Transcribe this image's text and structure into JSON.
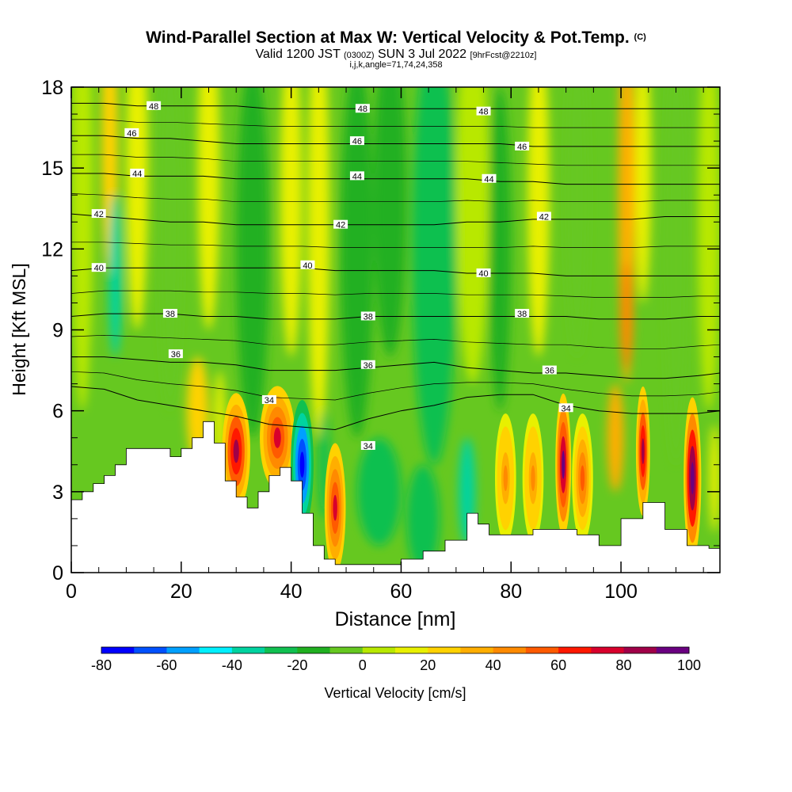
{
  "header": {
    "title": "Wind-Parallel Section at Max W: Vertical Velocity & Pot.Temp.",
    "title_mark": "(C)",
    "valid_label": "Valid 1200 JST",
    "valid_zulu": "(0300Z)",
    "valid_date": "SUN 3 Jul 2022",
    "forecast_info": "[9hrFcst@2210z]",
    "params": "i,j,k,angle=71,74,24,358"
  },
  "chart_data": {
    "type": "heatmap",
    "xlabel": "Distance [nm]",
    "ylabel": "Height [Kft MSL]",
    "xlim": [
      0,
      118
    ],
    "ylim": [
      0,
      18
    ],
    "x_ticks": [
      0,
      20,
      40,
      60,
      80,
      100
    ],
    "y_ticks": [
      0,
      3,
      6,
      9,
      12,
      15,
      18
    ],
    "colorbar": {
      "label": "Vertical Velocity [cm/s]",
      "ticks": [
        -80,
        -60,
        -40,
        -20,
        0,
        20,
        40,
        60,
        80,
        100
      ],
      "levels": [
        -80,
        -70,
        -60,
        -50,
        -40,
        -30,
        -20,
        -10,
        0,
        10,
        20,
        30,
        40,
        50,
        60,
        70,
        80,
        90,
        100
      ],
      "colors": [
        "#0000ff",
        "#0050ff",
        "#00a0ff",
        "#00f0ff",
        "#00d3a0",
        "#10c050",
        "#20b020",
        "#66c820",
        "#b8e800",
        "#e8f000",
        "#ffd200",
        "#ffae00",
        "#ff8a00",
        "#ff5a00",
        "#ff1800",
        "#d8002c",
        "#a00048",
        "#6a0080"
      ]
    },
    "terrain_x": [
      0,
      2,
      4,
      6,
      8,
      10,
      14,
      18,
      20,
      22,
      24,
      26,
      28,
      30,
      32,
      34,
      36,
      38,
      40,
      42,
      44,
      46,
      48,
      52,
      56,
      60,
      64,
      68,
      72,
      74,
      76,
      80,
      84,
      88,
      92,
      96,
      100,
      104,
      108,
      112,
      116,
      118
    ],
    "terrain_height": [
      2.7,
      3.0,
      3.3,
      3.6,
      4.0,
      4.6,
      4.6,
      4.3,
      4.6,
      5.0,
      5.6,
      4.8,
      3.4,
      2.8,
      2.4,
      3.0,
      3.6,
      3.9,
      3.4,
      2.2,
      1.0,
      0.5,
      0.3,
      0.3,
      0.3,
      0.5,
      0.8,
      1.2,
      2.2,
      1.8,
      1.4,
      1.4,
      1.6,
      1.6,
      1.4,
      1.0,
      2.0,
      2.6,
      1.6,
      1.0,
      0.9,
      0.8
    ],
    "theta_contours": [
      {
        "label": "34",
        "y": [
          6.9,
          6.8,
          6.4,
          6.2,
          6.0,
          5.8,
          5.5,
          5.4,
          5.3,
          5.7,
          6.0,
          6.2,
          6.5,
          6.6,
          6.6,
          6.2,
          6.0,
          5.9,
          5.9,
          5.9,
          6.0
        ]
      },
      {
        "label": "36",
        "y": [
          8.0,
          8.0,
          7.9,
          7.8,
          7.8,
          7.7,
          7.5,
          7.5,
          7.5,
          7.6,
          7.7,
          7.8,
          7.6,
          7.5,
          7.4,
          7.4,
          7.3,
          7.2,
          7.2,
          7.3,
          7.4
        ]
      },
      {
        "label": "38",
        "y": [
          9.5,
          9.6,
          9.6,
          9.6,
          9.5,
          9.5,
          9.4,
          9.4,
          9.4,
          9.5,
          9.5,
          9.5,
          9.5,
          9.5,
          9.5,
          9.5,
          9.4,
          9.4,
          9.4,
          9.5,
          9.5
        ]
      },
      {
        "label": "40",
        "y": [
          11.2,
          11.3,
          11.3,
          11.3,
          11.3,
          11.3,
          11.3,
          11.3,
          11.2,
          11.2,
          11.2,
          11.2,
          11.1,
          11.1,
          11.1,
          11.0,
          11.0,
          11.0,
          11.0,
          11.0,
          11.0
        ]
      },
      {
        "label": "42",
        "y": [
          13.3,
          13.2,
          13.1,
          13.0,
          13.0,
          12.9,
          12.9,
          12.9,
          12.9,
          12.9,
          12.9,
          12.9,
          13.0,
          13.0,
          13.1,
          13.1,
          13.1,
          13.1,
          13.2,
          13.2,
          13.2
        ]
      },
      {
        "label": "44",
        "y": [
          14.8,
          14.8,
          14.7,
          14.7,
          14.7,
          14.6,
          14.6,
          14.6,
          14.6,
          14.6,
          14.6,
          14.6,
          14.6,
          14.5,
          14.5,
          14.4,
          14.4,
          14.4,
          14.4,
          14.4,
          14.4
        ]
      },
      {
        "label": "46",
        "y": [
          16.2,
          16.2,
          16.1,
          16.1,
          16.0,
          15.9,
          15.9,
          15.9,
          15.9,
          15.9,
          15.9,
          15.9,
          15.9,
          15.9,
          15.8,
          15.8,
          15.8,
          15.8,
          15.8,
          15.8,
          15.8
        ]
      },
      {
        "label": "48",
        "y": [
          17.4,
          17.4,
          17.3,
          17.3,
          17.3,
          17.3,
          17.2,
          17.2,
          17.2,
          17.2,
          17.2,
          17.2,
          17.2,
          17.2,
          17.2,
          17.2,
          17.2,
          17.2,
          17.2,
          17.2,
          17.2
        ]
      }
    ],
    "contour_x": [
      0,
      6,
      12,
      18,
      24,
      30,
      36,
      42,
      48,
      54,
      60,
      66,
      72,
      78,
      84,
      90,
      96,
      102,
      108,
      114,
      118
    ],
    "contour_labels": [
      {
        "text": "48",
        "x": 15,
        "y": 17.3
      },
      {
        "text": "48",
        "x": 53,
        "y": 17.2
      },
      {
        "text": "48",
        "x": 75,
        "y": 17.1
      },
      {
        "text": "46",
        "x": 11,
        "y": 16.3
      },
      {
        "text": "46",
        "x": 52,
        "y": 16.0
      },
      {
        "text": "46",
        "x": 82,
        "y": 15.8
      },
      {
        "text": "44",
        "x": 12,
        "y": 14.8
      },
      {
        "text": "44",
        "x": 52,
        "y": 14.7
      },
      {
        "text": "44",
        "x": 76,
        "y": 14.6
      },
      {
        "text": "42",
        "x": 5,
        "y": 13.3
      },
      {
        "text": "42",
        "x": 49,
        "y": 12.9
      },
      {
        "text": "42",
        "x": 86,
        "y": 13.2
      },
      {
        "text": "40",
        "x": 5,
        "y": 11.3
      },
      {
        "text": "40",
        "x": 43,
        "y": 11.4
      },
      {
        "text": "40",
        "x": 75,
        "y": 11.1
      },
      {
        "text": "38",
        "x": 18,
        "y": 9.6
      },
      {
        "text": "38",
        "x": 54,
        "y": 9.5
      },
      {
        "text": "38",
        "x": 82,
        "y": 9.6
      },
      {
        "text": "36",
        "x": 19,
        "y": 8.1
      },
      {
        "text": "36",
        "x": 54,
        "y": 7.7
      },
      {
        "text": "36",
        "x": 87,
        "y": 7.5
      },
      {
        "text": "34",
        "x": 36,
        "y": 6.4
      },
      {
        "text": "34",
        "x": 54,
        "y": 4.7
      },
      {
        "text": "34",
        "x": 90,
        "y": 6.1
      }
    ],
    "updraft_cells": [
      {
        "x": 30,
        "y": 4.5,
        "w": 1.6,
        "h": 1.8,
        "v": 80
      },
      {
        "x": 37.5,
        "y": 5.0,
        "w": 2.0,
        "h": 1.6,
        "v": 70
      },
      {
        "x": 42,
        "y": 4.0,
        "w": 1.3,
        "h": 2.0,
        "v": -80
      },
      {
        "x": 48,
        "y": 2.4,
        "w": 1.2,
        "h": 2.0,
        "v": 70
      },
      {
        "x": 79,
        "y": 3.5,
        "w": 1.2,
        "h": 2.0,
        "v": 40
      },
      {
        "x": 84,
        "y": 3.5,
        "w": 1.2,
        "h": 2.0,
        "v": 40
      },
      {
        "x": 89.5,
        "y": 4.0,
        "w": 0.9,
        "h": 2.2,
        "v": 90
      },
      {
        "x": 93,
        "y": 3.5,
        "w": 1.2,
        "h": 2.0,
        "v": 50
      },
      {
        "x": 104,
        "y": 4.5,
        "w": 0.8,
        "h": 2.0,
        "v": 80
      },
      {
        "x": 113,
        "y": 3.5,
        "w": 1.0,
        "h": 2.5,
        "v": 100
      }
    ]
  }
}
